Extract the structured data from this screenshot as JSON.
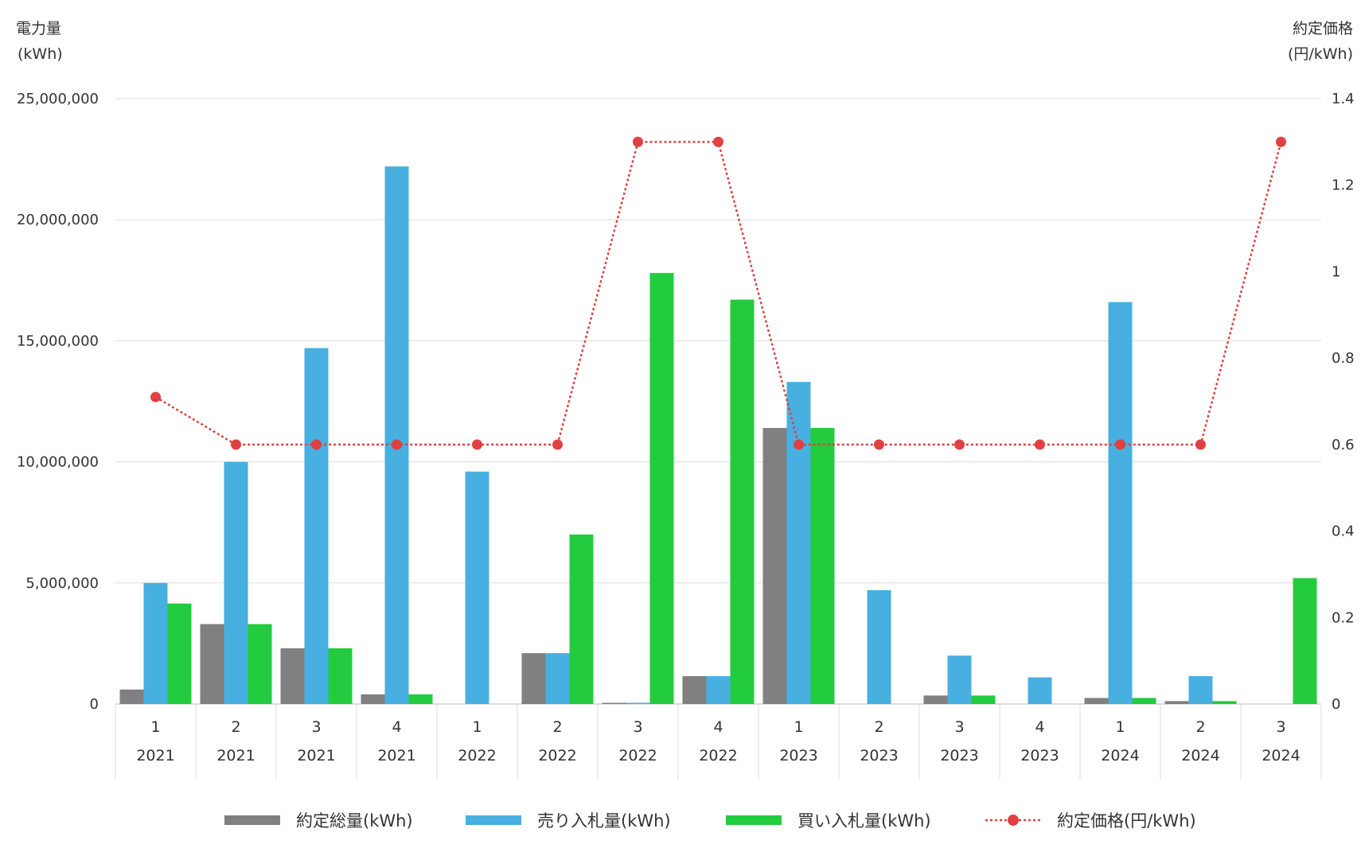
{
  "chart_data": {
    "type": "bar",
    "y_left_label_line1": "電力量",
    "y_left_label_line2": "(kWh)",
    "y_right_label_line1": "約定価格",
    "y_right_label_line2": "(円/kWh)",
    "ylim_left": [
      0,
      25000000
    ],
    "ylim_right": [
      0,
      1.4
    ],
    "yticks_left": [
      "0",
      "5,000,000",
      "10,000,000",
      "15,000,000",
      "20,000,000",
      "25,000,000"
    ],
    "yticks_right": [
      "0",
      "0.2",
      "0.4",
      "0.6",
      "0.8",
      "1",
      "1.2",
      "1.4"
    ],
    "grid": true,
    "legend_position": "bottom",
    "categories": [
      {
        "quarter": "1",
        "year": "2021"
      },
      {
        "quarter": "2",
        "year": "2021"
      },
      {
        "quarter": "3",
        "year": "2021"
      },
      {
        "quarter": "4",
        "year": "2021"
      },
      {
        "quarter": "1",
        "year": "2022"
      },
      {
        "quarter": "2",
        "year": "2022"
      },
      {
        "quarter": "3",
        "year": "2022"
      },
      {
        "quarter": "4",
        "year": "2022"
      },
      {
        "quarter": "1",
        "year": "2023"
      },
      {
        "quarter": "2",
        "year": "2023"
      },
      {
        "quarter": "3",
        "year": "2023"
      },
      {
        "quarter": "4",
        "year": "2023"
      },
      {
        "quarter": "1",
        "year": "2024"
      },
      {
        "quarter": "2",
        "year": "2024"
      },
      {
        "quarter": "3",
        "year": "2024"
      }
    ],
    "series": [
      {
        "name": "約定総量(kWh)",
        "kind": "bar",
        "color": "#808080",
        "values": [
          600000,
          3300000,
          2300000,
          400000,
          0,
          2100000,
          50000,
          1150000,
          11400000,
          0,
          350000,
          0,
          250000,
          120000,
          0
        ]
      },
      {
        "name": "売り入札量(kWh)",
        "kind": "bar",
        "color": "#47B0E0",
        "values": [
          5000000,
          10000000,
          14700000,
          22200000,
          9600000,
          2100000,
          50000,
          1150000,
          13300000,
          4700000,
          2000000,
          1100000,
          16600000,
          1150000,
          0
        ]
      },
      {
        "name": "買い入札量(kWh)",
        "kind": "bar",
        "color": "#22CC3E",
        "values": [
          4150000,
          3300000,
          2300000,
          400000,
          0,
          7000000,
          17800000,
          16700000,
          11400000,
          0,
          350000,
          0,
          250000,
          120000,
          5200000
        ]
      },
      {
        "name": "約定価格(円/kWh)",
        "kind": "line",
        "axis": "right",
        "color": "#E04040",
        "values": [
          0.71,
          0.6,
          0.6,
          0.6,
          0.6,
          0.6,
          1.3,
          1.3,
          0.6,
          0.6,
          0.6,
          0.6,
          0.6,
          0.6,
          1.3
        ]
      }
    ]
  }
}
